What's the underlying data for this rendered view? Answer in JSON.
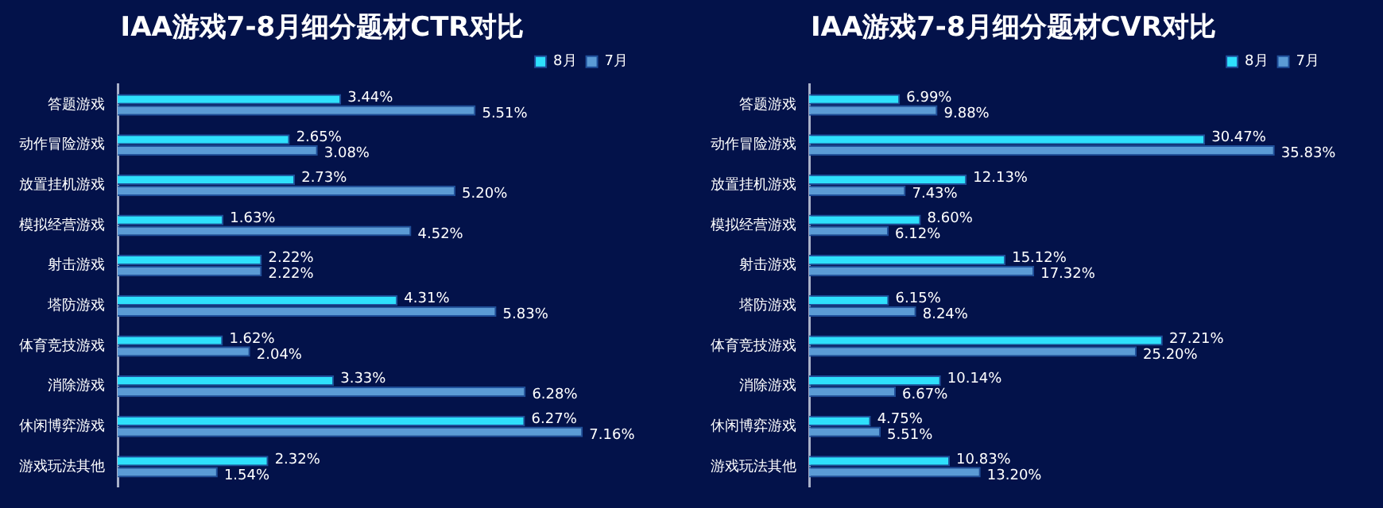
{
  "chart_data": [
    {
      "type": "bar",
      "orientation": "horizontal",
      "title": "IAA游戏7-8月细分题材CTR对比",
      "categories": [
        "答题游戏",
        "动作冒险游戏",
        "放置挂机游戏",
        "模拟经营游戏",
        "射击游戏",
        "塔防游戏",
        "体育竞技游戏",
        "消除游戏",
        "休闲博弈游戏",
        "游戏玩法其他"
      ],
      "legend": "top right",
      "tick_labels": "y",
      "series": [
        {
          "name": "8月",
          "color": "#2ee0fc",
          "values": [
            3.44,
            2.65,
            2.73,
            1.63,
            2.22,
            4.31,
            1.62,
            3.33,
            6.27,
            2.32
          ],
          "value_labels": [
            "3.44%",
            "2.65%",
            "2.73%",
            "1.63%",
            "2.22%",
            "4.31%",
            "1.62%",
            "3.33%",
            "6.27%",
            "2.32%"
          ]
        },
        {
          "name": "7月",
          "color": "#5b9bd5",
          "values": [
            5.51,
            3.08,
            5.2,
            4.52,
            2.22,
            5.83,
            2.04,
            6.28,
            7.16,
            1.54
          ],
          "value_labels": [
            "5.51%",
            "3.08%",
            "5.20%",
            "4.52%",
            "2.22%",
            "5.83%",
            "2.04%",
            "6.28%",
            "7.16%",
            "1.54%"
          ]
        }
      ]
    },
    {
      "type": "bar",
      "orientation": "horizontal",
      "title": "IAA游戏7-8月细分题材CVR对比",
      "categories": [
        "答题游戏",
        "动作冒险游戏",
        "放置挂机游戏",
        "模拟经营游戏",
        "射击游戏",
        "塔防游戏",
        "体育竞技游戏",
        "消除游戏",
        "休闲博弈游戏",
        "游戏玩法其他"
      ],
      "legend": "top right",
      "tick_labels": "y",
      "series": [
        {
          "name": "8月",
          "color": "#2ee0fc",
          "values": [
            6.99,
            30.47,
            12.13,
            8.6,
            15.12,
            6.15,
            27.21,
            10.14,
            4.75,
            10.83
          ],
          "value_labels": [
            "6.99%",
            "30.47%",
            "12.13%",
            "8.60%",
            "15.12%",
            "6.15%",
            "27.21%",
            "10.14%",
            "4.75%",
            "10.83%"
          ]
        },
        {
          "name": "7月",
          "color": "#5b9bd5",
          "values": [
            9.88,
            35.83,
            7.43,
            6.12,
            17.32,
            8.24,
            25.2,
            6.67,
            5.51,
            13.2
          ],
          "value_labels": [
            "9.88%",
            "35.83%",
            "7.43%",
            "6.12%",
            "17.32%",
            "8.24%",
            "25.20%",
            "6.67%",
            "5.51%",
            "13.20%"
          ]
        }
      ]
    }
  ]
}
